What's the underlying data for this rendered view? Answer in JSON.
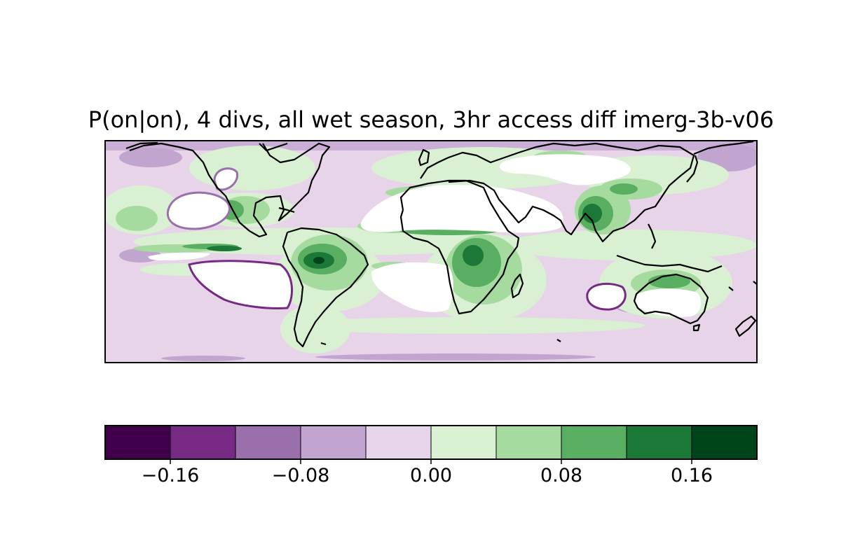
{
  "title": "P(on|on), 4 divs, all wet season, 3hr access diff imerg-3b-v06",
  "colorbar": {
    "bins": [
      {
        "color": "#40004b"
      },
      {
        "color": "#762a83"
      },
      {
        "color": "#9970ab"
      },
      {
        "color": "#c2a5cf"
      },
      {
        "color": "#e7d4e8"
      },
      {
        "color": "#d9f0d3"
      },
      {
        "color": "#a6dba0"
      },
      {
        "color": "#5aae61"
      },
      {
        "color": "#1b7837"
      },
      {
        "color": "#00441b"
      }
    ],
    "range": [
      -0.2,
      0.2
    ],
    "ticks": [
      {
        "value": -0.16,
        "label": "−0.16"
      },
      {
        "value": -0.08,
        "label": "−0.08"
      },
      {
        "value": 0.0,
        "label": "0.00"
      },
      {
        "value": 0.08,
        "label": "0.08"
      },
      {
        "value": 0.16,
        "label": "0.16"
      }
    ]
  },
  "colors": {
    "background": "#e7d4e8",
    "masked": "#ffffff",
    "coastline": "#000000"
  }
}
